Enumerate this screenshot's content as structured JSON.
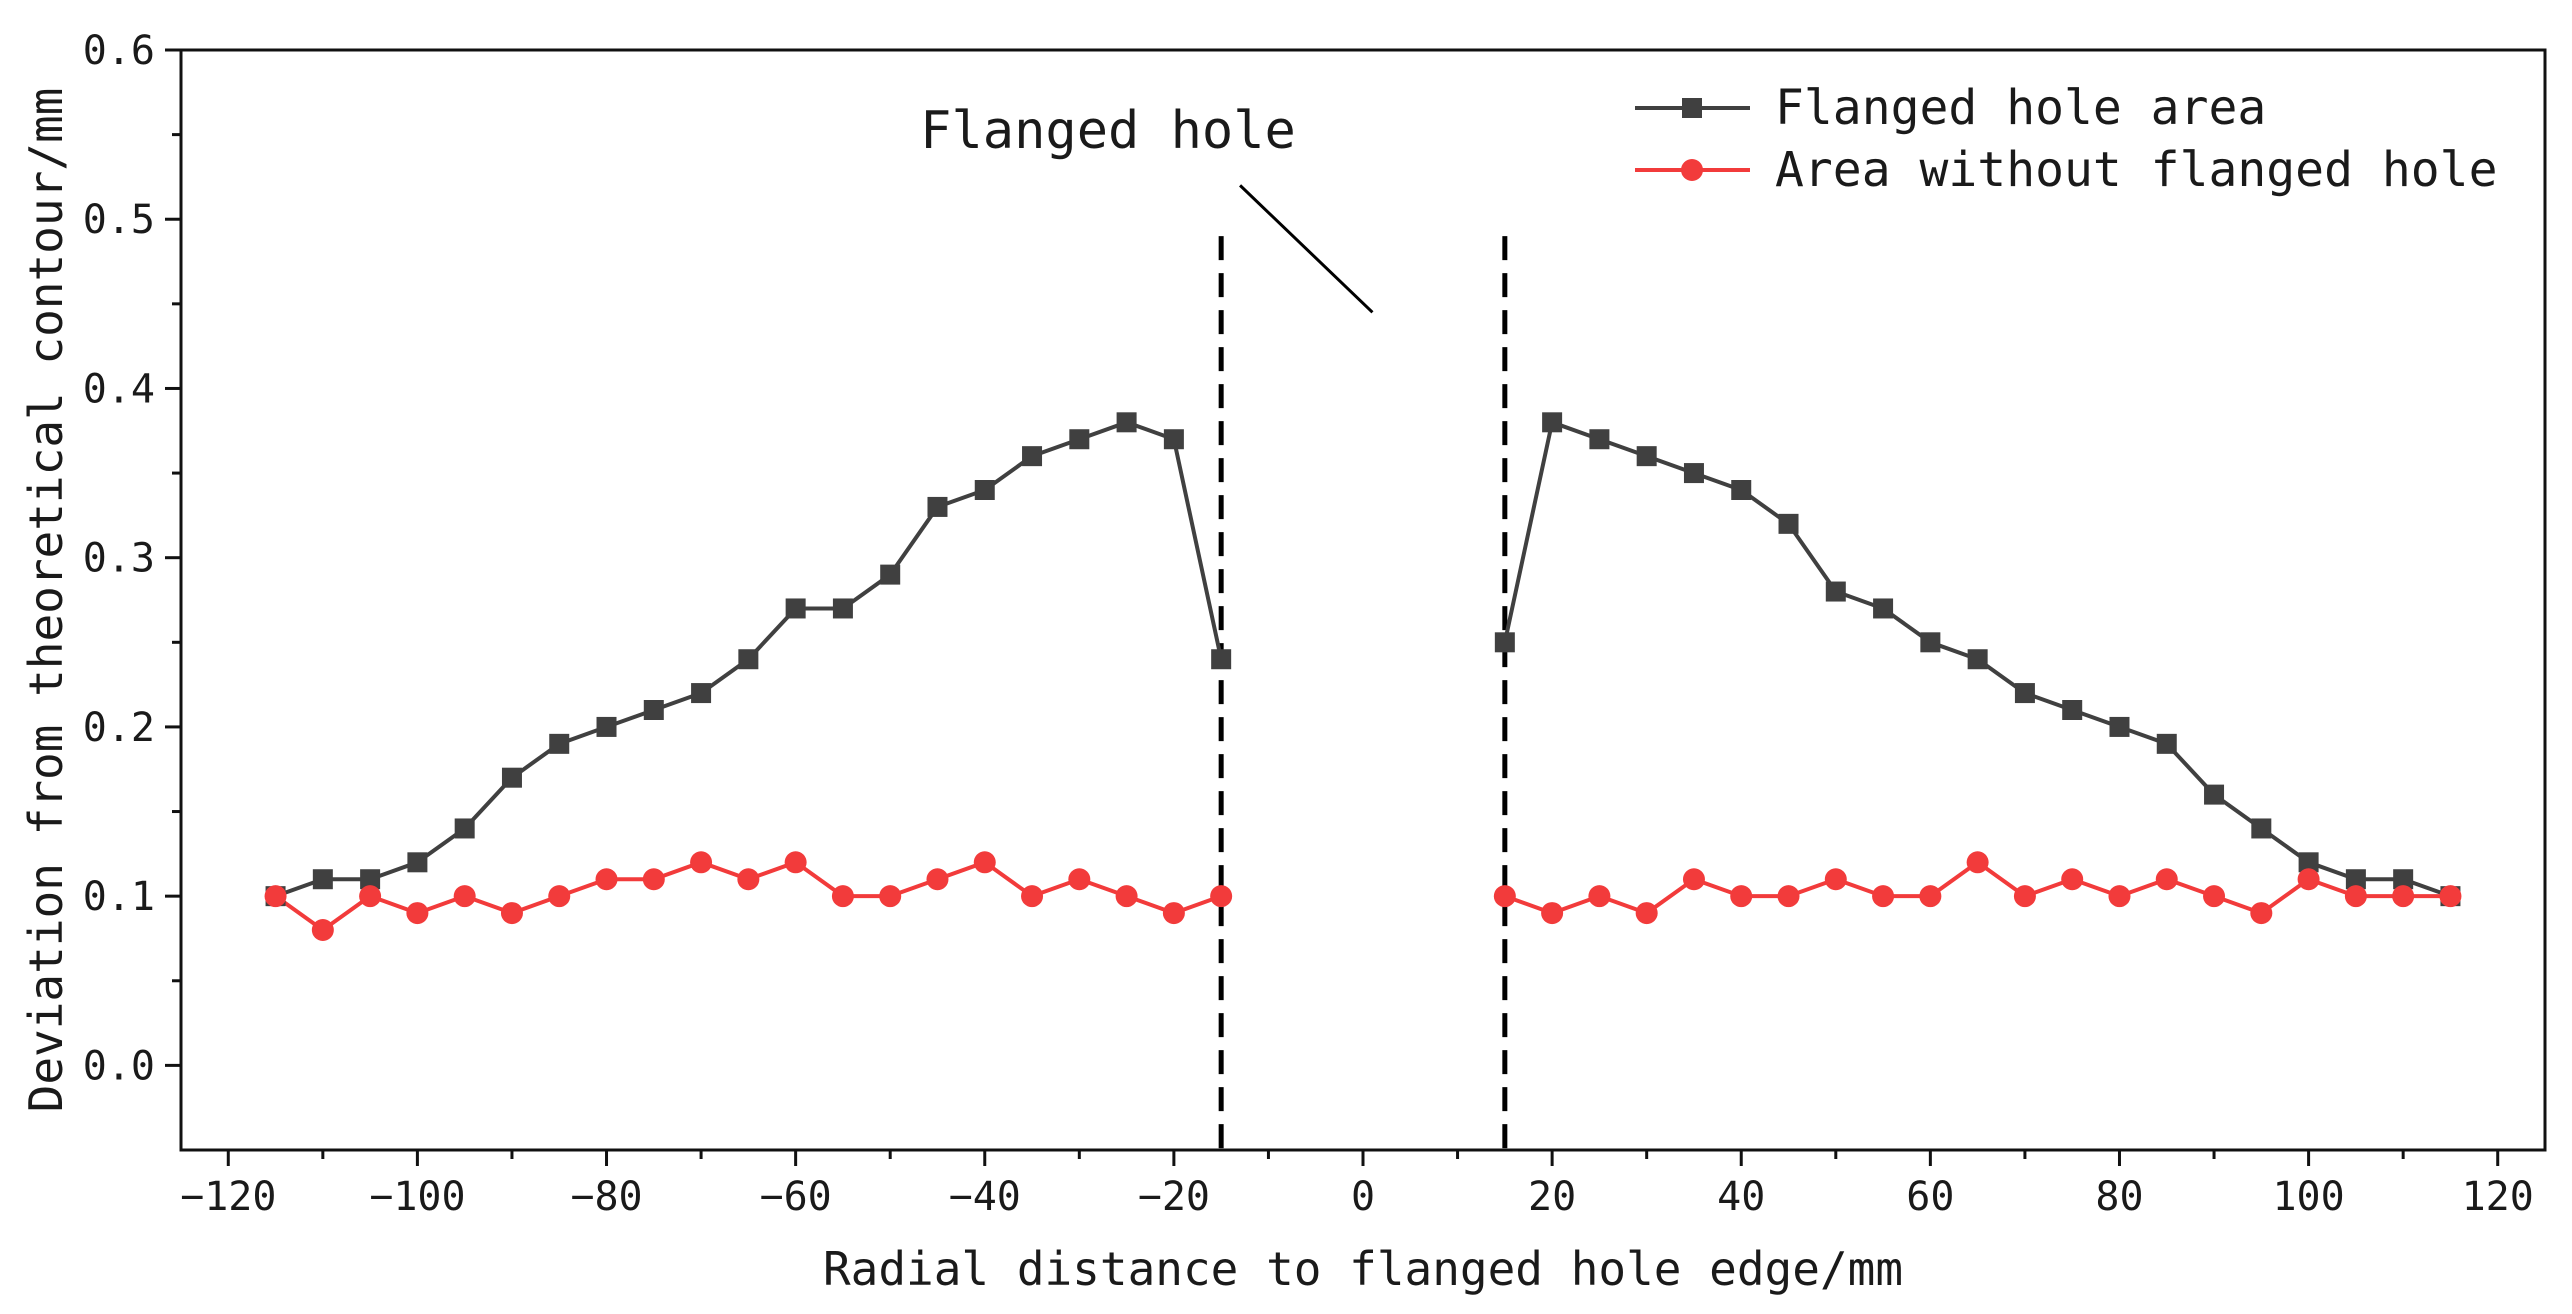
{
  "chart_data": {
    "type": "line",
    "title": "",
    "xlabel": "Radial distance to flanged hole edge/mm",
    "ylabel": "Deviation from theoretical contour/mm",
    "xlim": [
      -125,
      125
    ],
    "ylim": [
      -0.05,
      0.6
    ],
    "xticks": [
      -120,
      -100,
      -80,
      -60,
      -40,
      -20,
      0,
      20,
      40,
      60,
      80,
      100,
      120
    ],
    "yticks": [
      0.0,
      0.1,
      0.2,
      0.3,
      0.4,
      0.5,
      0.6
    ],
    "xtick_labels": [
      "−120",
      "−100",
      "−80",
      "−60",
      "−40",
      "−20",
      "0",
      "20",
      "40",
      "60",
      "80",
      "100",
      "120"
    ],
    "ytick_labels": [
      "0.0",
      "0.1",
      "0.2",
      "0.3",
      "0.4",
      "0.5",
      "0.6"
    ],
    "grid": false,
    "legend_position": "top-right",
    "annotation": {
      "text": "Flanged hole",
      "dashed_lines_x": [
        -15,
        15
      ],
      "dashed_lines_y_top": 0.49,
      "pointer_from": [
        -13,
        0.52
      ],
      "pointer_to": [
        1,
        0.445
      ]
    },
    "series": [
      {
        "name": "Flanged hole area",
        "color": "#404040",
        "marker": "square",
        "segments": [
          {
            "x": [
              -115,
              -110,
              -105,
              -100,
              -95,
              -90,
              -85,
              -80,
              -75,
              -70,
              -65,
              -60,
              -55,
              -50,
              -45,
              -40,
              -35,
              -30,
              -25,
              -20,
              -15
            ],
            "y": [
              0.1,
              0.11,
              0.11,
              0.12,
              0.14,
              0.17,
              0.19,
              0.2,
              0.21,
              0.22,
              0.24,
              0.27,
              0.27,
              0.29,
              0.33,
              0.34,
              0.36,
              0.37,
              0.38,
              0.37,
              0.24
            ]
          },
          {
            "x": [
              15,
              20,
              25,
              30,
              35,
              40,
              45,
              50,
              55,
              60,
              65,
              70,
              75,
              80,
              85,
              90,
              95,
              100,
              105,
              110,
              115
            ],
            "y": [
              0.25,
              0.38,
              0.37,
              0.36,
              0.35,
              0.34,
              0.32,
              0.28,
              0.27,
              0.25,
              0.24,
              0.22,
              0.21,
              0.2,
              0.19,
              0.16,
              0.14,
              0.12,
              0.11,
              0.11,
              0.1
            ]
          }
        ]
      },
      {
        "name": "Area without flanged hole",
        "color": "#f23b3b",
        "marker": "circle",
        "segments": [
          {
            "x": [
              -115,
              -110,
              -105,
              -100,
              -95,
              -90,
              -85,
              -80,
              -75,
              -70,
              -65,
              -60,
              -55,
              -50,
              -45,
              -40,
              -35,
              -30,
              -25,
              -20,
              -15
            ],
            "y": [
              0.1,
              0.08,
              0.1,
              0.09,
              0.1,
              0.09,
              0.1,
              0.11,
              0.11,
              0.12,
              0.11,
              0.12,
              0.1,
              0.1,
              0.11,
              0.12,
              0.1,
              0.11,
              0.1,
              0.09,
              0.1
            ]
          },
          {
            "x": [
              15,
              20,
              25,
              30,
              35,
              40,
              45,
              50,
              55,
              60,
              65,
              70,
              75,
              80,
              85,
              90,
              95,
              100,
              105,
              110,
              115
            ],
            "y": [
              0.1,
              0.09,
              0.1,
              0.09,
              0.11,
              0.1,
              0.1,
              0.11,
              0.1,
              0.1,
              0.12,
              0.1,
              0.11,
              0.1,
              0.11,
              0.1,
              0.09,
              0.11,
              0.1,
              0.1,
              0.1
            ]
          }
        ]
      }
    ]
  }
}
